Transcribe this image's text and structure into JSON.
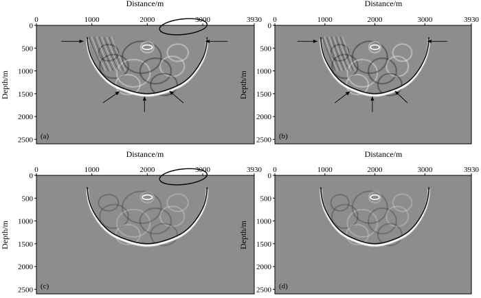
{
  "figure": {
    "panels": [
      {
        "label": "(a)",
        "x_title": "Distance/m",
        "y_title": "Depth/m",
        "show_arrows": true,
        "show_ellipse": true,
        "strong_artifacts": true
      },
      {
        "label": "(b)",
        "x_title": "Distance/m",
        "y_title": "Depth/m",
        "show_arrows": true,
        "show_ellipse": false,
        "strong_artifacts": true
      },
      {
        "label": "(c)",
        "x_title": "Distance/m",
        "y_title": "Depth/m",
        "show_arrows": false,
        "show_ellipse": true,
        "strong_artifacts": false
      },
      {
        "label": "(d)",
        "x_title": "Distance/m",
        "y_title": "Depth/m",
        "show_arrows": false,
        "show_ellipse": false,
        "strong_artifacts": false
      }
    ],
    "x_ticks": [
      "0",
      "1000",
      "2000",
      "3000",
      "3930"
    ],
    "y_ticks": [
      "0",
      "500",
      "1000",
      "1500",
      "2000",
      "2500"
    ],
    "x_range": [
      0,
      3930
    ],
    "y_range": [
      0,
      2600
    ],
    "background_color": "#8d8d8d"
  }
}
